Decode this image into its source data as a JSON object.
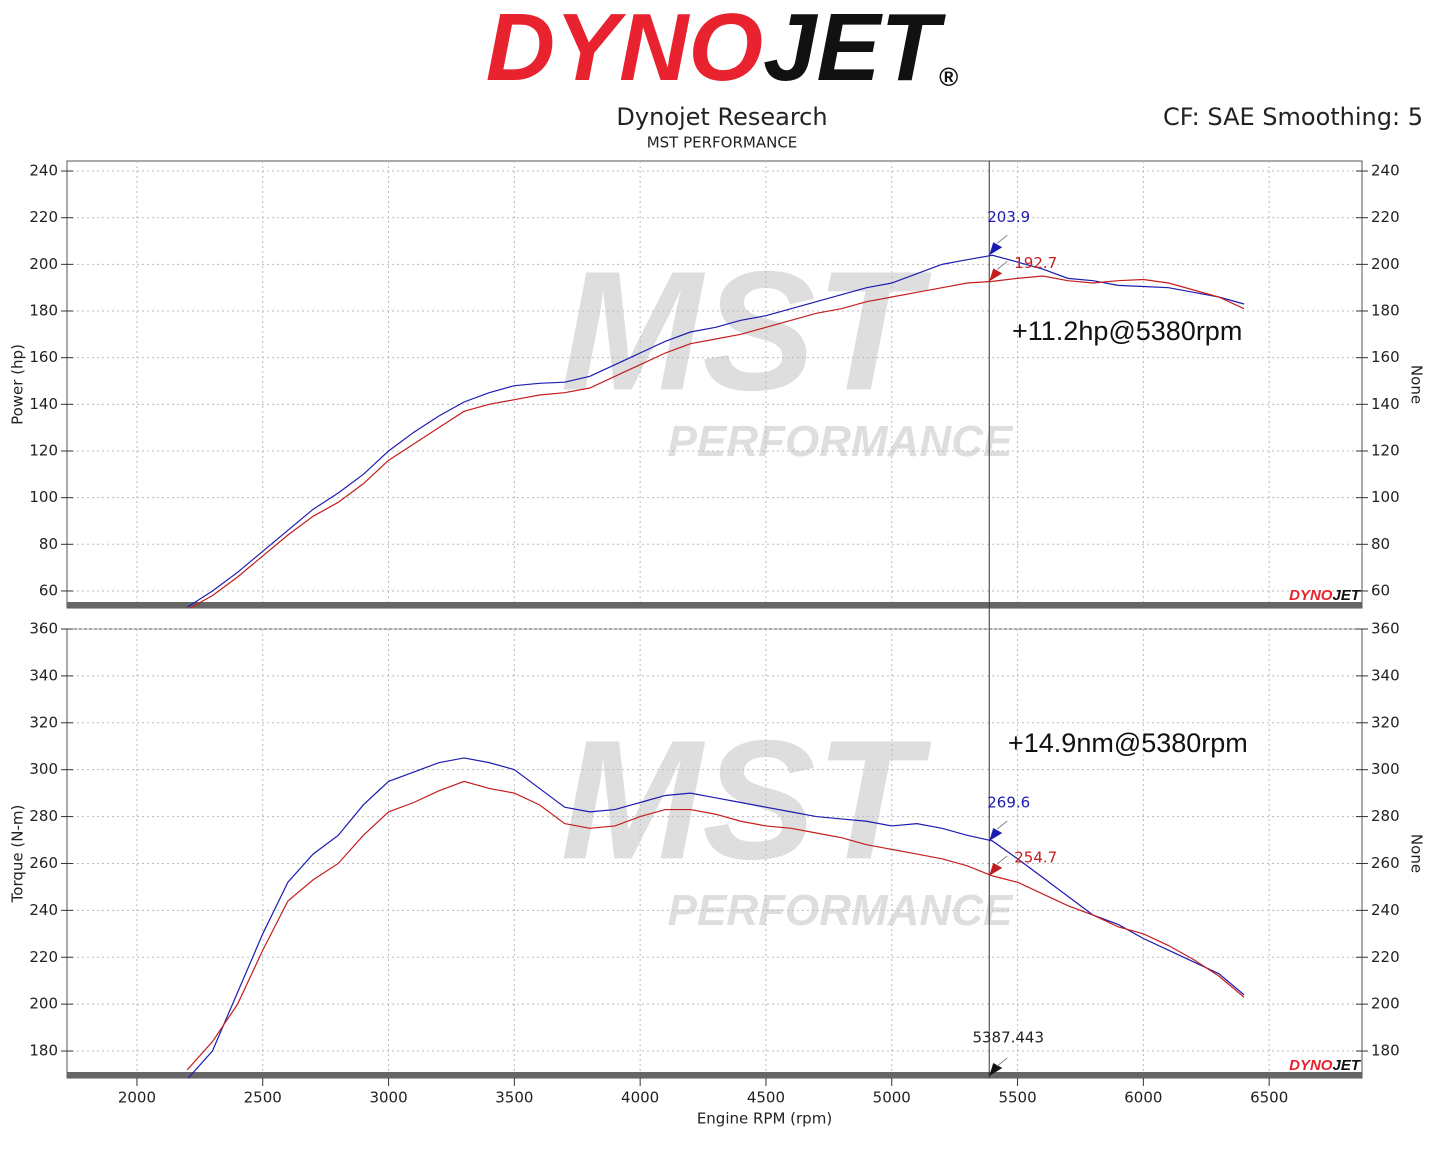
{
  "header": {
    "logo": [
      "DYNO",
      "JET",
      "®"
    ],
    "title": "Dynojet Research",
    "subtitle": "MST PERFORMANCE",
    "settings": "CF: SAE Smoothing: 5"
  },
  "watermark": [
    "MST",
    "PERFORMANCE"
  ],
  "chart_data": [
    {
      "type": "line",
      "y_label": "Power (hp)",
      "y2_label": "None",
      "annotation": "+11.2hp@5380rpm",
      "xlim": [
        1722,
        6869
      ],
      "xticks": [
        2000,
        2500,
        3000,
        3500,
        4000,
        4500,
        5000,
        5500,
        6000,
        6500
      ],
      "ylim": [
        52.7,
        244.3
      ],
      "yticks": [
        60,
        80,
        100,
        120,
        140,
        160,
        180,
        200,
        220,
        240
      ],
      "grid": true,
      "x": [
        2200,
        2300,
        2400,
        2500,
        2600,
        2700,
        2800,
        2900,
        3000,
        3100,
        3200,
        3300,
        3400,
        3500,
        3600,
        3700,
        3800,
        3900,
        4000,
        4100,
        4200,
        4300,
        4400,
        4500,
        4600,
        4700,
        4800,
        4900,
        5000,
        5100,
        5200,
        5300,
        5400,
        5500,
        5600,
        5700,
        5800,
        5900,
        6000,
        6100,
        6200,
        6300,
        6400
      ],
      "series": [
        {
          "color": "#1c1cb0",
          "cursor_value": 203.9,
          "values": [
            53,
            60,
            68,
            77,
            86,
            95,
            102,
            110,
            120,
            128,
            135,
            141,
            145,
            148,
            149,
            149.5,
            152,
            157,
            162,
            167,
            171,
            173,
            176,
            178,
            181,
            184,
            187,
            190,
            192,
            196,
            200,
            202,
            203.9,
            201,
            198,
            194,
            193,
            191,
            190.5,
            190,
            188,
            186,
            183
          ]
        },
        {
          "color": "#c41e1e",
          "cursor_value": 192.7,
          "values": [
            52,
            58,
            66,
            75,
            84,
            92,
            98,
            106,
            116,
            123,
            130,
            137,
            140,
            142,
            144,
            145,
            147,
            152,
            157,
            162,
            166,
            168,
            170,
            173,
            176,
            179,
            181,
            184,
            186,
            188,
            190,
            192,
            192.7,
            194,
            195,
            193,
            192,
            193,
            193.5,
            192,
            189,
            186,
            181
          ]
        }
      ]
    },
    {
      "type": "line",
      "y_label": "Torque (N-m)",
      "y2_label": "None",
      "x_label": "Engine RPM (rpm)",
      "annotation": "+14.9nm@5380rpm",
      "cursor": 5387.443,
      "xlim": [
        1722,
        6869
      ],
      "xticks": [
        2000,
        2500,
        3000,
        3500,
        4000,
        4500,
        5000,
        5500,
        6000,
        6500
      ],
      "ylim": [
        168.5,
        360
      ],
      "yticks": [
        180,
        200,
        220,
        240,
        260,
        280,
        300,
        320,
        340,
        360
      ],
      "grid": true,
      "x": [
        2200,
        2300,
        2400,
        2500,
        2600,
        2700,
        2800,
        2900,
        3000,
        3100,
        3200,
        3300,
        3400,
        3500,
        3600,
        3700,
        3800,
        3900,
        4000,
        4100,
        4200,
        4300,
        4400,
        4500,
        4600,
        4700,
        4800,
        4900,
        5000,
        5100,
        5200,
        5300,
        5400,
        5500,
        5600,
        5700,
        5800,
        5900,
        6000,
        6100,
        6200,
        6300,
        6400
      ],
      "series": [
        {
          "color": "#1c1cb0",
          "cursor_value": 269.6,
          "values": [
            168,
            180,
            205,
            230,
            252,
            264,
            272,
            285,
            295,
            299,
            303,
            305,
            303,
            300,
            292,
            284,
            282,
            283,
            286,
            289,
            290,
            288,
            286,
            284,
            282,
            280,
            279,
            278,
            276,
            277,
            275,
            272,
            269.6,
            262,
            254,
            246,
            238,
            234,
            228,
            223,
            218,
            213,
            204
          ]
        },
        {
          "color": "#c41e1e",
          "cursor_value": 254.7,
          "values": [
            172,
            184,
            200,
            223,
            244,
            253,
            260,
            272,
            282,
            286,
            291,
            295,
            292,
            290,
            285,
            277,
            275,
            276,
            280,
            283,
            283,
            281,
            278,
            276,
            275,
            273,
            271,
            268,
            266,
            264,
            262,
            259,
            254.7,
            252,
            247,
            242,
            238,
            233,
            230,
            225,
            219,
            212,
            203
          ]
        }
      ]
    }
  ]
}
